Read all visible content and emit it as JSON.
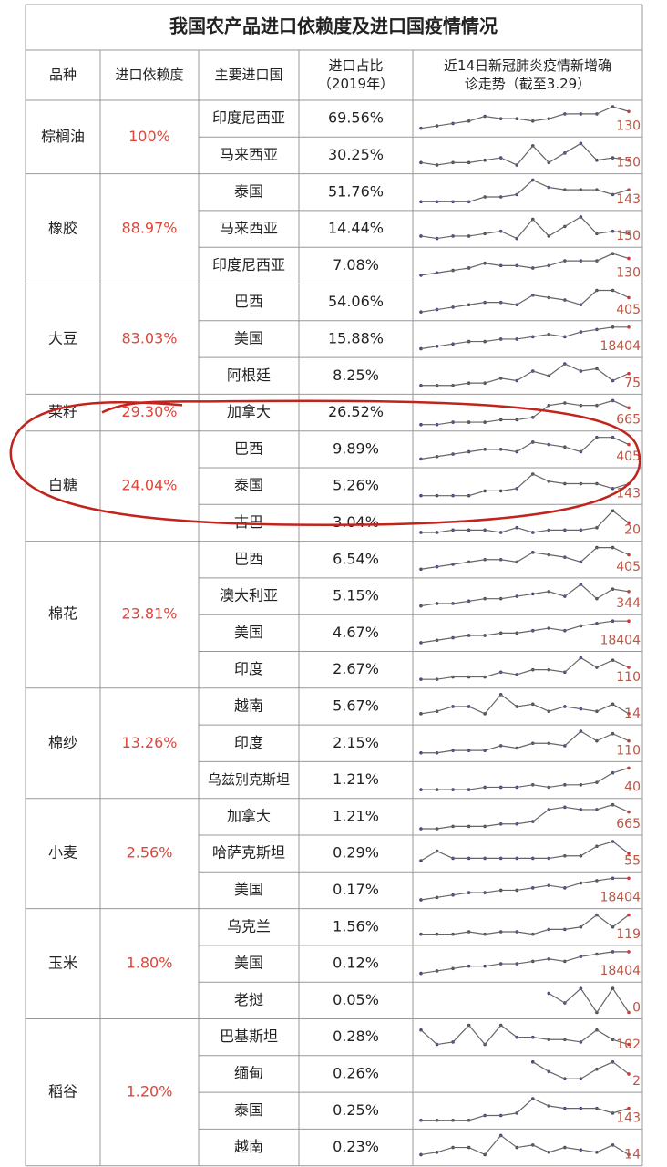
{
  "title": "我国农产品进口依赖度及进口国疫情情况",
  "header": [
    [
      "品种"
    ],
    [
      "进口依赖度"
    ],
    [
      "主要进口国"
    ],
    [
      "进口占比",
      "（2019年）"
    ],
    [
      "近14日新冠肺炎疫情新增确",
      "诊走势（截至3.29）"
    ]
  ],
  "groups": [
    {
      "name": "棕榈油",
      "dependency": "100%",
      "rows": [
        {
          "country": "印度尼西亚",
          "share": "69.56%",
          "trend": [
            1,
            2,
            3,
            4,
            6,
            5,
            5,
            4,
            5,
            7,
            7,
            7,
            10,
            8
          ],
          "latest": 130
        },
        {
          "country": "马来西亚",
          "share": "30.25%",
          "trend": [
            2,
            1,
            2,
            2,
            3,
            4,
            1,
            9,
            2,
            6,
            10,
            3,
            4,
            3
          ],
          "latest": 150
        }
      ]
    },
    {
      "name": "橡胶",
      "dependency": "88.97%",
      "rows": [
        {
          "country": "泰国",
          "share": "51.76%",
          "trend": [
            1,
            1,
            1,
            1,
            3,
            3,
            4,
            10,
            7,
            6,
            6,
            6,
            4,
            6
          ],
          "latest": 143
        },
        {
          "country": "马来西亚",
          "share": "14.44%",
          "trend": [
            2,
            1,
            2,
            2,
            3,
            4,
            1,
            9,
            2,
            6,
            10,
            3,
            4,
            3
          ],
          "latest": 150
        },
        {
          "country": "印度尼西亚",
          "share": "7.08%",
          "trend": [
            1,
            2,
            3,
            4,
            6,
            5,
            5,
            4,
            5,
            7,
            7,
            7,
            10,
            8
          ],
          "latest": 130
        }
      ]
    },
    {
      "name": "大豆",
      "dependency": "83.03%",
      "rows": [
        {
          "country": "巴西",
          "share": "54.06%",
          "trend": [
            1,
            2,
            3,
            4,
            5,
            5,
            4,
            8,
            7,
            6,
            4,
            10,
            10,
            7
          ],
          "latest": 405
        },
        {
          "country": "美国",
          "share": "15.88%",
          "trend": [
            1,
            2,
            3,
            4,
            4,
            5,
            5,
            6,
            7,
            6,
            8,
            9,
            10,
            10
          ],
          "latest": 18404
        },
        {
          "country": "阿根廷",
          "share": "8.25%",
          "trend": [
            1,
            1,
            1,
            2,
            2,
            4,
            3,
            7,
            5,
            10,
            7,
            8,
            3,
            6
          ],
          "latest": 75
        }
      ]
    },
    {
      "name": "菜籽",
      "dependency": "29.30%",
      "rows": [
        {
          "country": "加拿大",
          "share": "26.52%",
          "trend": [
            0,
            0,
            1,
            1,
            1,
            2,
            2,
            3,
            8,
            9,
            8,
            8,
            10,
            7
          ],
          "latest": 665
        }
      ]
    },
    {
      "name": "白糖",
      "dependency": "24.04%",
      "rows": [
        {
          "country": "巴西",
          "share": "9.89%",
          "trend": [
            1,
            2,
            3,
            4,
            5,
            5,
            4,
            8,
            7,
            6,
            4,
            10,
            10,
            7
          ],
          "latest": 405
        },
        {
          "country": "泰国",
          "share": "5.26%",
          "trend": [
            1,
            1,
            1,
            1,
            3,
            3,
            4,
            10,
            7,
            6,
            6,
            6,
            4,
            6
          ],
          "latest": 143
        },
        {
          "country": "古巴",
          "share": "3.04%",
          "trend": [
            1,
            1,
            2,
            2,
            2,
            1,
            3,
            1,
            2,
            2,
            2,
            3,
            10,
            5
          ],
          "latest": 20
        }
      ]
    },
    {
      "name": "棉花",
      "dependency": "23.81%",
      "rows": [
        {
          "country": "巴西",
          "share": "6.54%",
          "trend": [
            1,
            2,
            3,
            4,
            5,
            5,
            4,
            8,
            7,
            6,
            4,
            10,
            10,
            7
          ],
          "latest": 405
        },
        {
          "country": "澳大利亚",
          "share": "5.15%",
          "trend": [
            1,
            2,
            2,
            3,
            4,
            4,
            5,
            6,
            7,
            5,
            10,
            4,
            8,
            7
          ],
          "latest": 344
        },
        {
          "country": "美国",
          "share": "4.67%",
          "trend": [
            1,
            2,
            3,
            4,
            4,
            5,
            5,
            6,
            7,
            6,
            8,
            9,
            10,
            10
          ],
          "latest": 18404
        },
        {
          "country": "印度",
          "share": "2.67%",
          "trend": [
            1,
            1,
            2,
            2,
            2,
            4,
            3,
            5,
            5,
            4,
            10,
            6,
            9,
            6
          ],
          "latest": 110
        }
      ]
    },
    {
      "name": "棉纱",
      "dependency": "13.26%",
      "rows": [
        {
          "country": "越南",
          "share": "5.67%",
          "trend": [
            2,
            3,
            5,
            5,
            2,
            10,
            5,
            6,
            3,
            5,
            4,
            3,
            6,
            2
          ],
          "latest": 14
        },
        {
          "country": "印度",
          "share": "2.15%",
          "trend": [
            1,
            1,
            2,
            2,
            2,
            4,
            3,
            5,
            5,
            4,
            10,
            6,
            9,
            6
          ],
          "latest": 110
        },
        {
          "country": "乌兹别克斯坦",
          "share": "1.21%",
          "trend": [
            1,
            1,
            1,
            1,
            2,
            2,
            2,
            3,
            2,
            3,
            3,
            4,
            8,
            10
          ],
          "latest": 40
        }
      ]
    },
    {
      "name": "小麦",
      "dependency": "2.56%",
      "rows": [
        {
          "country": "加拿大",
          "share": "1.21%",
          "trend": [
            0,
            0,
            1,
            1,
            1,
            2,
            2,
            3,
            8,
            9,
            8,
            8,
            10,
            7
          ],
          "latest": 665
        },
        {
          "country": "哈萨克斯坦",
          "share": "0.29%",
          "trend": [
            2,
            6,
            3,
            3,
            3,
            3,
            3,
            3,
            3,
            4,
            4,
            8,
            10,
            5
          ],
          "latest": 55
        },
        {
          "country": "美国",
          "share": "0.17%",
          "trend": [
            1,
            2,
            3,
            4,
            4,
            5,
            5,
            6,
            7,
            6,
            8,
            9,
            10,
            10
          ],
          "latest": 18404
        }
      ]
    },
    {
      "name": "玉米",
      "dependency": "1.80%",
      "rows": [
        {
          "country": "乌克兰",
          "share": "1.56%",
          "trend": [
            2,
            2,
            2,
            3,
            2,
            3,
            3,
            2,
            4,
            4,
            5,
            10,
            5,
            10
          ],
          "latest": 119
        },
        {
          "country": "美国",
          "share": "0.12%",
          "trend": [
            1,
            2,
            3,
            4,
            4,
            5,
            5,
            6,
            7,
            6,
            8,
            9,
            10,
            10
          ],
          "latest": 18404
        },
        {
          "country": "老挝",
          "share": "0.05%",
          "trend": [
            null,
            null,
            null,
            null,
            null,
            null,
            null,
            null,
            8,
            4,
            10,
            0,
            10,
            0
          ],
          "latest": 0
        }
      ]
    },
    {
      "name": "稻谷",
      "dependency": "1.20%",
      "rows": [
        {
          "country": "巴基斯坦",
          "share": "0.28%",
          "trend": [
            8,
            2,
            3,
            10,
            2,
            10,
            5,
            5,
            4,
            4,
            3,
            8,
            4,
            2
          ],
          "latest": 102
        },
        {
          "country": "缅甸",
          "share": "0.26%",
          "trend": [
            null,
            null,
            null,
            null,
            null,
            null,
            null,
            10,
            6,
            3,
            3,
            7,
            10,
            5
          ],
          "latest": 2
        },
        {
          "country": "泰国",
          "share": "0.25%",
          "trend": [
            1,
            1,
            1,
            1,
            3,
            3,
            4,
            10,
            7,
            6,
            6,
            6,
            4,
            6
          ],
          "latest": 143
        },
        {
          "country": "越南",
          "share": "0.23%",
          "trend": [
            2,
            3,
            5,
            5,
            2,
            10,
            5,
            6,
            3,
            5,
            4,
            3,
            6,
            2
          ],
          "latest": 14
        }
      ]
    }
  ]
}
